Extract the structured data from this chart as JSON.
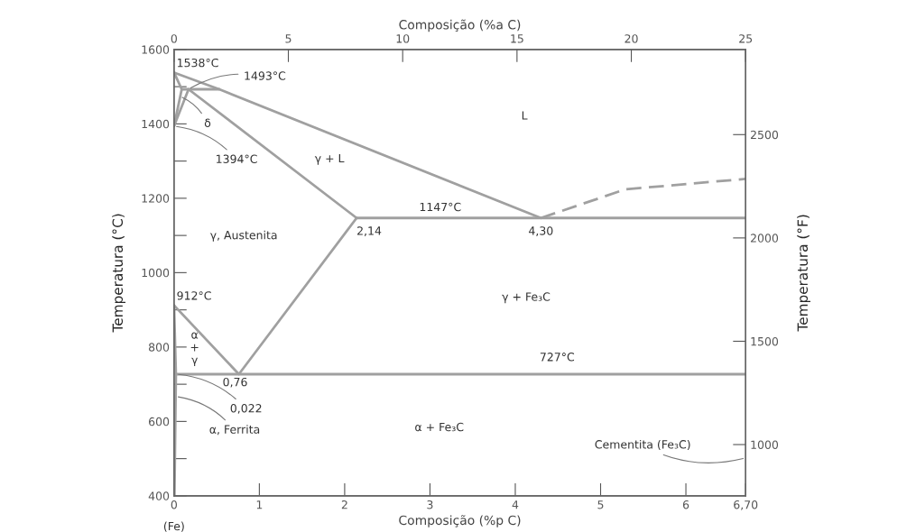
{
  "chart_data": {
    "type": "line",
    "xlabel": "Composição (%p C)",
    "x2label": "Composição (%a C)",
    "ylabel": "Temperatura (°C)",
    "y2label": "Temperatura (°F)",
    "xlim": [
      0,
      6.7
    ],
    "xticks": [
      0,
      1,
      2,
      3,
      4,
      5,
      6,
      {
        "value": 6.7,
        "label": "6,70"
      }
    ],
    "x2lim": [
      0,
      25
    ],
    "x2ticks": [
      0,
      5,
      10,
      15,
      20,
      25
    ],
    "ylim": [
      400,
      1600
    ],
    "yticks": [
      400,
      {
        "value": 500,
        "label": null
      },
      600,
      {
        "value": 700,
        "label": null
      },
      800,
      {
        "value": 900,
        "label": null
      },
      1000,
      {
        "value": 1100,
        "label": null
      },
      1200,
      {
        "value": 1300,
        "label": null
      },
      1400,
      {
        "value": 1500,
        "label": null
      },
      1600
    ],
    "y2lim": [
      752,
      2912
    ],
    "y2ticks": [
      1000,
      1500,
      2000,
      2500
    ],
    "grid": false,
    "legend": false,
    "marker": "none",
    "series": [
      {
        "color": "#a0a0a0",
        "x": [
          0,
          0.53,
          4.3
        ],
        "values": [
          1538,
          1493,
          1147
        ]
      },
      {
        "color": "#a0a0a0",
        "line_style": "dashed",
        "x": [
          4.3,
          5.29,
          6.7
        ],
        "values": [
          1147,
          1224,
          1252
        ]
      },
      {
        "color": "#a0a0a0",
        "x": [
          0.09,
          0.53
        ],
        "values": [
          1493,
          1493
        ]
      },
      {
        "color": "#a0a0a0",
        "x": [
          0,
          0.09,
          0
        ],
        "values": [
          1538,
          1493,
          1394
        ]
      },
      {
        "color": "#a0a0a0",
        "x": [
          0,
          0.17,
          2.14
        ],
        "values": [
          1394,
          1493,
          1147
        ]
      },
      {
        "color": "#a0a0a0",
        "x": [
          2.14,
          6.7
        ],
        "values": [
          1147,
          1147
        ]
      },
      {
        "color": "#a0a0a0",
        "x": [
          2.14,
          0.76,
          0
        ],
        "values": [
          1147,
          727,
          912
        ]
      },
      {
        "color": "#a0a0a0",
        "x": [
          0,
          0.022,
          0.005
        ],
        "values": [
          912,
          727,
          400
        ]
      },
      {
        "color": "#a0a0a0",
        "x": [
          0.022,
          6.7
        ],
        "values": [
          727,
          727
        ]
      }
    ],
    "annotations": [
      {
        "text": "1538°C",
        "x": 0,
        "y": 1538
      },
      {
        "text": "1493°C",
        "x": 0.17,
        "y": 1493
      },
      {
        "text": "δ",
        "x": 0.07,
        "y": 1474
      },
      {
        "text": "1394°C",
        "x": 0,
        "y": 1394
      },
      "γ + L",
      "L",
      {
        "text": "1147°C",
        "x": 3.12,
        "y": 1147
      },
      {
        "text": "2,14",
        "x": 2.14,
        "y": 1147
      },
      {
        "text": "4,30",
        "x": 4.3,
        "y": 1147
      },
      "γ, Austenita",
      "γ + Fe₃C",
      {
        "text": "912°C",
        "x": 0,
        "y": 912
      },
      "α\n+\nγ",
      {
        "text": "727°C",
        "x": 4.49,
        "y": 727
      },
      {
        "text": "0,76",
        "x": 0.76,
        "y": 727
      },
      {
        "text": "0,022",
        "x": 0.022,
        "y": 727
      },
      {
        "text": "α, Ferrita",
        "x": 0.02,
        "y": 667
      },
      "α + Fe₃C",
      "Cementita (Fe₃C)",
      {
        "text": "(Fe)",
        "x": 0,
        "y": 400
      }
    ]
  }
}
